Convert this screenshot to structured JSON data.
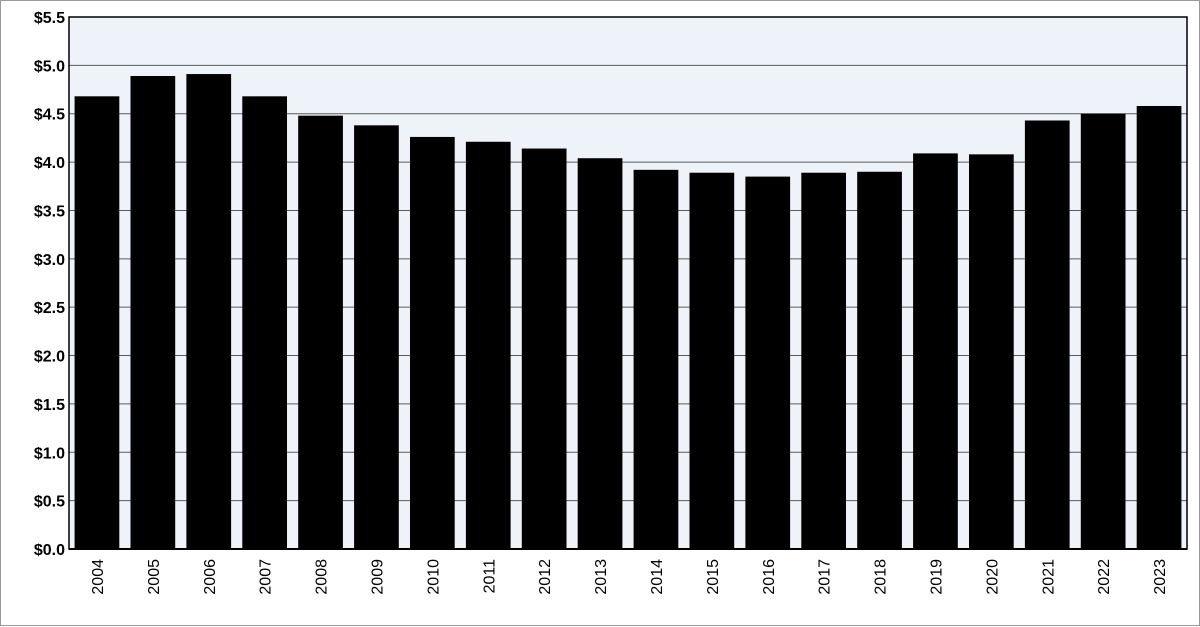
{
  "chart_data": {
    "type": "bar",
    "categories": [
      "2004",
      "2005",
      "2006",
      "2007",
      "2008",
      "2009",
      "2010",
      "2011",
      "2012",
      "2013",
      "2014",
      "2015",
      "2016",
      "2017",
      "2018",
      "2019",
      "2020",
      "2021",
      "2022",
      "2023"
    ],
    "values": [
      4.68,
      4.89,
      4.91,
      4.68,
      4.48,
      4.38,
      4.26,
      4.21,
      4.14,
      4.04,
      3.92,
      3.89,
      3.85,
      3.89,
      3.9,
      4.09,
      4.08,
      4.43,
      4.5,
      4.58
    ],
    "ylim": [
      0,
      5.5
    ],
    "yticks": [
      "$0.0",
      "$0.5",
      "$1.0",
      "$1.5",
      "$2.0",
      "$2.5",
      "$3.0",
      "$3.5",
      "$4.0",
      "$4.5",
      "$5.0",
      "$5.5"
    ],
    "ytick_values": [
      0,
      0.5,
      1.0,
      1.5,
      2.0,
      2.5,
      3.0,
      3.5,
      4.0,
      4.5,
      5.0,
      5.5
    ],
    "title": "",
    "xlabel": "",
    "ylabel": "",
    "grid": true,
    "legend": "none",
    "colors": {
      "bar": "#000000",
      "plot_background": "#eef3f9",
      "gridline": "#5a5a5a",
      "axis": "#000000"
    }
  }
}
